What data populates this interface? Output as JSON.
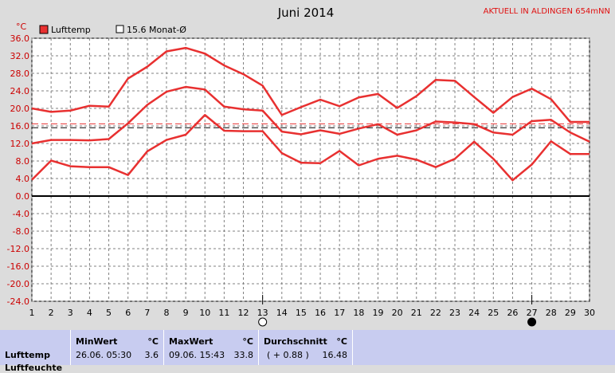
{
  "chart_data": {
    "type": "line",
    "title": "Juni 2014",
    "station": "AKTUELL IN ALDINGEN 654mNN",
    "ylabel": "°C",
    "ylim": [
      -24,
      36
    ],
    "yticks": [
      "36.0",
      "32.0",
      "28.0",
      "24.0",
      "20.0",
      "16.0",
      "12.0",
      "8.0",
      "4.0",
      "0.0",
      "-4.0",
      "-8.0",
      "-12.0",
      "-16.0",
      "-20.0",
      "-24.0"
    ],
    "x": [
      1,
      2,
      3,
      4,
      5,
      6,
      7,
      8,
      9,
      10,
      11,
      12,
      13,
      14,
      15,
      16,
      17,
      18,
      19,
      20,
      21,
      22,
      23,
      24,
      25,
      26,
      27,
      28,
      29,
      30
    ],
    "grid": true,
    "legend": [
      {
        "label": "Lufttemp",
        "color": "#e83030",
        "marker": "filled-square"
      },
      {
        "label": "15.6 Monat-Ø",
        "color": "#000000",
        "marker": "open-square"
      }
    ],
    "series": [
      {
        "role": "max",
        "color": "#e83030",
        "values": [
          20.0,
          19.2,
          19.5,
          20.6,
          20.4,
          26.8,
          29.5,
          33.0,
          33.8,
          32.5,
          29.8,
          27.8,
          25.2,
          18.5,
          20.3,
          22.0,
          20.5,
          22.5,
          23.3,
          20.1,
          22.8,
          26.5,
          26.3,
          22.6,
          19.0,
          22.6,
          24.5,
          22.1,
          16.9,
          16.9
        ]
      },
      {
        "role": "mean",
        "color": "#e83030",
        "values": [
          12.0,
          12.8,
          12.8,
          12.7,
          13.0,
          16.6,
          20.8,
          23.8,
          24.9,
          24.3,
          20.4,
          19.8,
          19.5,
          14.7,
          14.1,
          15.0,
          14.2,
          15.4,
          16.4,
          14.0,
          15.0,
          17.0,
          16.8,
          16.4,
          14.5,
          14.0,
          17.1,
          17.4,
          14.5,
          12.4
        ]
      },
      {
        "role": "min",
        "color": "#e83030",
        "values": [
          3.7,
          8.1,
          6.8,
          6.6,
          6.6,
          4.8,
          10.2,
          12.8,
          14.0,
          18.5,
          14.9,
          14.8,
          14.8,
          9.8,
          7.6,
          7.5,
          10.3,
          7.0,
          8.5,
          9.2,
          8.3,
          6.6,
          8.5,
          12.4,
          8.5,
          3.6,
          7.2,
          12.5,
          9.6,
          9.6
        ]
      }
    ],
    "references": [
      {
        "role": "month-average",
        "value": 15.6,
        "color": "#000000",
        "style": "dashed"
      },
      {
        "role": "long-term-average",
        "value": 16.48,
        "color": "#e83030",
        "style": "dashed"
      }
    ],
    "markers": [
      {
        "x": 13,
        "symbol": "full-moon",
        "style": "open"
      },
      {
        "x": 27,
        "symbol": "new-moon",
        "style": "filled"
      }
    ]
  },
  "stats": {
    "row_label": "Lufttemp",
    "row_label_2": "Luftfeuchte",
    "min": {
      "header": "MinWert",
      "unit": "°C",
      "datetime": "26.06.  05:30",
      "value": "3.6"
    },
    "max": {
      "header": "MaxWert",
      "unit": "°C",
      "datetime": "09.06.  15:43",
      "value": "33.8"
    },
    "avg": {
      "header": "Durchschnitt",
      "unit": "°C",
      "delta": "( + 0.88 )",
      "value": "16.48"
    }
  }
}
